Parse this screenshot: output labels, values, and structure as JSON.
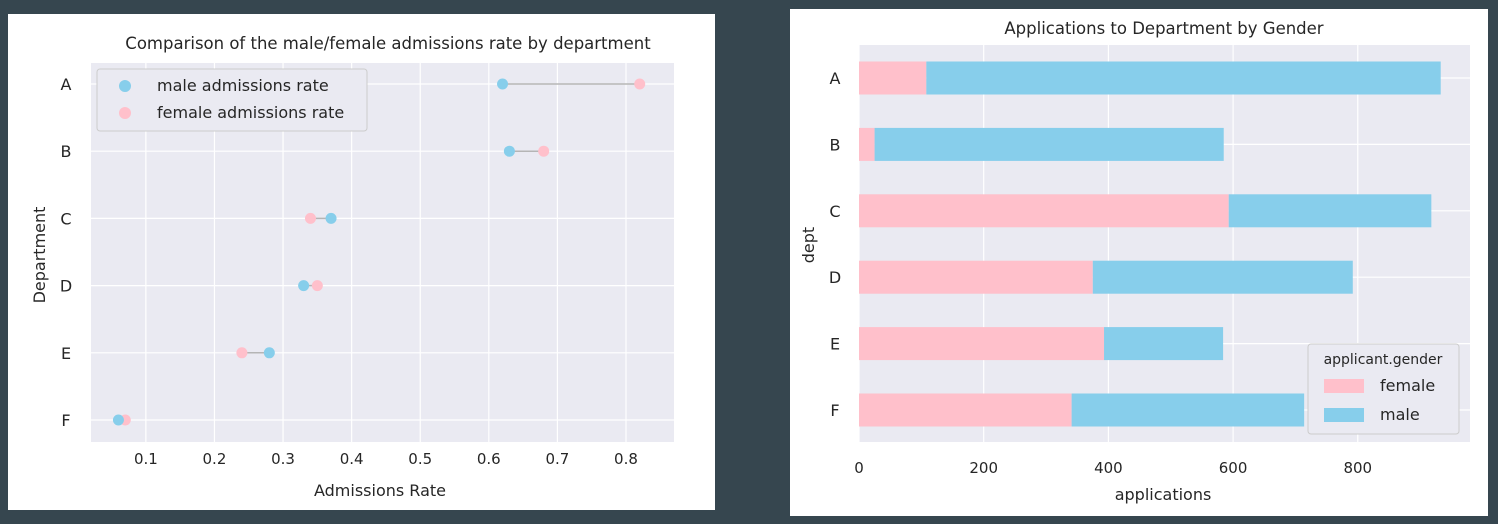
{
  "colors": {
    "male": "#87ceeb",
    "female": "#ffc0cb",
    "plot_background": "#eaeaf2",
    "grid": "#ffffff",
    "page_background": "#36464f"
  },
  "chart_data": [
    {
      "type": "scatter",
      "title": "Comparison of the male/female admissions rate by department",
      "xlabel": "Admissions Rate",
      "ylabel": "Department",
      "xlim": [
        0.02,
        0.87
      ],
      "x_ticks": [
        "0.1",
        "0.2",
        "0.3",
        "0.4",
        "0.5",
        "0.6",
        "0.7",
        "0.8"
      ],
      "x_tick_values": [
        0.1,
        0.2,
        0.3,
        0.4,
        0.5,
        0.6,
        0.7,
        0.8
      ],
      "categories": [
        "A",
        "B",
        "C",
        "D",
        "E",
        "F"
      ],
      "grid": true,
      "legend_position": "top-left",
      "series": [
        {
          "name": "male admissions rate",
          "color": "#87ceeb",
          "values": [
            0.62,
            0.63,
            0.37,
            0.33,
            0.28,
            0.06
          ]
        },
        {
          "name": "female admissions rate",
          "color": "#ffc0cb",
          "values": [
            0.82,
            0.68,
            0.34,
            0.35,
            0.24,
            0.07
          ]
        }
      ]
    },
    {
      "type": "bar",
      "orientation": "horizontal",
      "stacked": true,
      "title": "Applications to Department by Gender",
      "xlabel": "applications",
      "ylabel": "dept",
      "xlim": [
        0,
        980
      ],
      "x_ticks": [
        "0",
        "200",
        "400",
        "600",
        "800"
      ],
      "x_tick_values": [
        0,
        200,
        400,
        600,
        800
      ],
      "categories": [
        "A",
        "B",
        "C",
        "D",
        "E",
        "F"
      ],
      "grid": true,
      "legend_title": "applicant.gender",
      "legend_position": "bottom-right",
      "series": [
        {
          "name": "female",
          "color": "#ffc0cb",
          "values": [
            108,
            25,
            593,
            375,
            393,
            341
          ]
        },
        {
          "name": "male",
          "color": "#87ceeb",
          "values": [
            825,
            560,
            325,
            417,
            191,
            373
          ]
        }
      ]
    }
  ]
}
